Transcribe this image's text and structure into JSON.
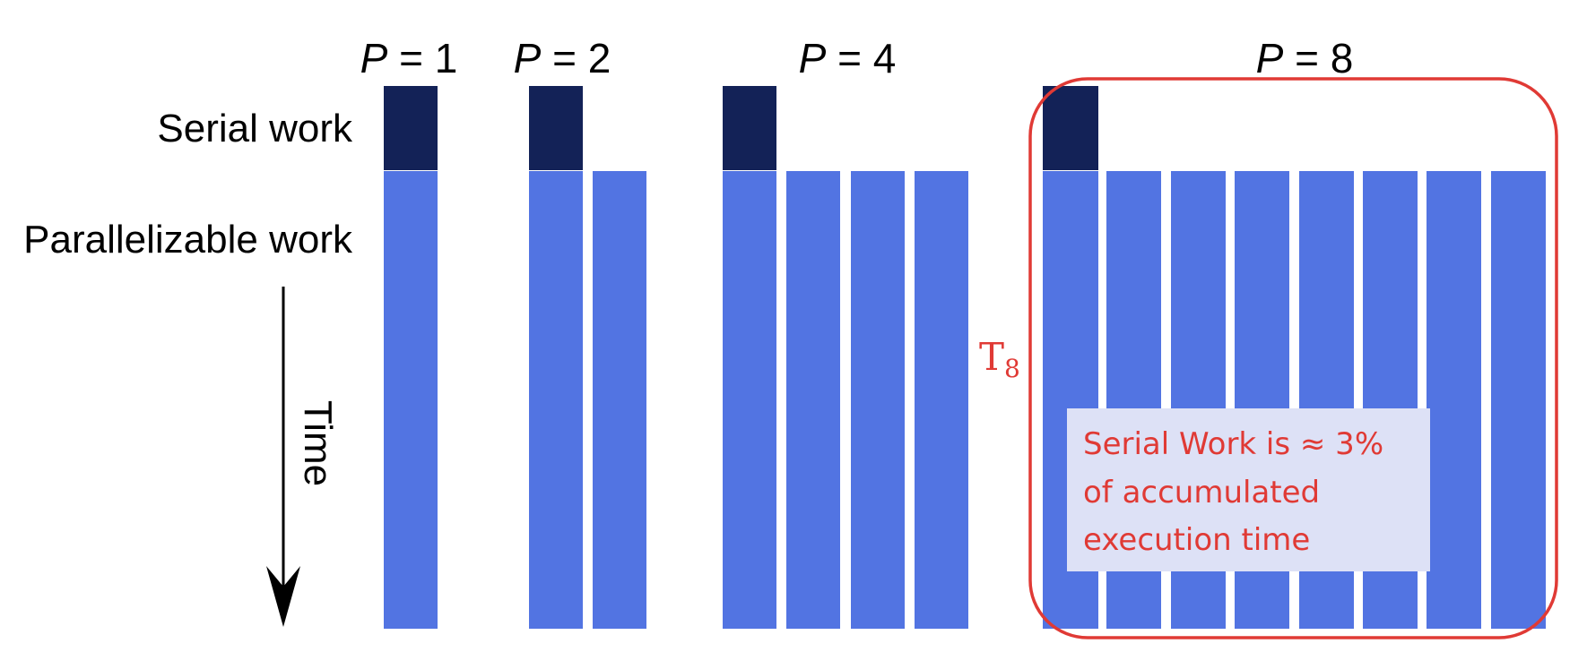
{
  "labels": {
    "serial_work": "Serial work",
    "parallelizable_work": "Parallelizable work",
    "time": "Time"
  },
  "groups": [
    {
      "p_var": "P",
      "p_eq": " = ",
      "p_value": "1",
      "processors": 1
    },
    {
      "p_var": "P",
      "p_eq": " = ",
      "p_value": "2",
      "processors": 2
    },
    {
      "p_var": "P",
      "p_eq": " = ",
      "p_value": "4",
      "processors": 4
    },
    {
      "p_var": "P",
      "p_eq": " = ",
      "p_value": "8",
      "processors": 8
    }
  ],
  "highlight": {
    "time_symbol": "T",
    "time_subscript": "8",
    "note_lines": [
      "Serial Work is ≈ 3%",
      "of accumulated",
      "execution time"
    ]
  },
  "colors": {
    "serial": "#132257",
    "parallel": "#5274e2",
    "highlight": "#e03a35",
    "note_background": "#dde1f6",
    "text": "#000000"
  }
}
